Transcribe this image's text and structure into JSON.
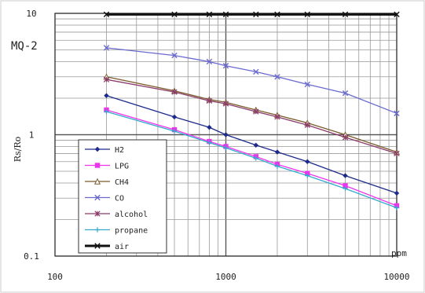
{
  "chart_data": {
    "type": "line",
    "title": "MQ-2",
    "ylabel": "Rs/Ro",
    "xlabel": "ppm",
    "x_scale": "log",
    "y_scale": "log",
    "xlim": [
      100,
      10000
    ],
    "ylim": [
      0.1,
      10
    ],
    "x_tick_labels": [
      "100",
      "1000",
      "10000"
    ],
    "y_tick_labels": [
      "0.1",
      "1",
      "10"
    ],
    "grid": true,
    "legend_position": "bottom-left",
    "series": [
      {
        "name": "H2",
        "color": "#1c2a8a",
        "marker": "diamond",
        "x": [
          200,
          500,
          800,
          1000,
          1500,
          2000,
          3000,
          5000,
          10000
        ],
        "y": [
          2.1,
          1.4,
          1.15,
          1.0,
          0.82,
          0.72,
          0.6,
          0.46,
          0.33
        ]
      },
      {
        "name": "LPG",
        "color": "#ee33ee",
        "marker": "square",
        "x": [
          200,
          500,
          800,
          1000,
          1500,
          2000,
          3000,
          5000,
          10000
        ],
        "y": [
          1.6,
          1.1,
          0.88,
          0.8,
          0.66,
          0.57,
          0.48,
          0.38,
          0.26
        ]
      },
      {
        "name": "CH4",
        "color": "#7a5a2a",
        "marker": "triangle",
        "x": [
          200,
          500,
          800,
          1000,
          1500,
          2000,
          3000,
          5000,
          10000
        ],
        "y": [
          3.0,
          2.3,
          1.95,
          1.85,
          1.6,
          1.45,
          1.25,
          1.0,
          0.72
        ]
      },
      {
        "name": "CO",
        "color": "#6a6ad0",
        "marker": "cross",
        "x": [
          200,
          500,
          800,
          1000,
          1500,
          2000,
          3000,
          5000,
          10000
        ],
        "y": [
          5.2,
          4.5,
          4.0,
          3.7,
          3.3,
          3.0,
          2.6,
          2.2,
          1.5
        ]
      },
      {
        "name": "alcohol",
        "color": "#8b3a6a",
        "marker": "asterisk",
        "x": [
          200,
          500,
          800,
          1000,
          1500,
          2000,
          3000,
          5000,
          10000
        ],
        "y": [
          2.85,
          2.25,
          1.9,
          1.8,
          1.55,
          1.4,
          1.2,
          0.95,
          0.7
        ]
      },
      {
        "name": "propane",
        "color": "#33aacc",
        "marker": "plus",
        "x": [
          200,
          500,
          800,
          1000,
          1500,
          2000,
          3000,
          5000,
          10000
        ],
        "y": [
          1.55,
          1.07,
          0.86,
          0.78,
          0.64,
          0.55,
          0.46,
          0.36,
          0.25
        ]
      },
      {
        "name": "air",
        "color": "#111111",
        "marker": "x",
        "x": [
          200,
          500,
          800,
          1000,
          1500,
          2000,
          3000,
          5000,
          10000
        ],
        "y": [
          9.8,
          9.8,
          9.8,
          9.8,
          9.8,
          9.8,
          9.8,
          9.8,
          9.8
        ]
      }
    ]
  }
}
